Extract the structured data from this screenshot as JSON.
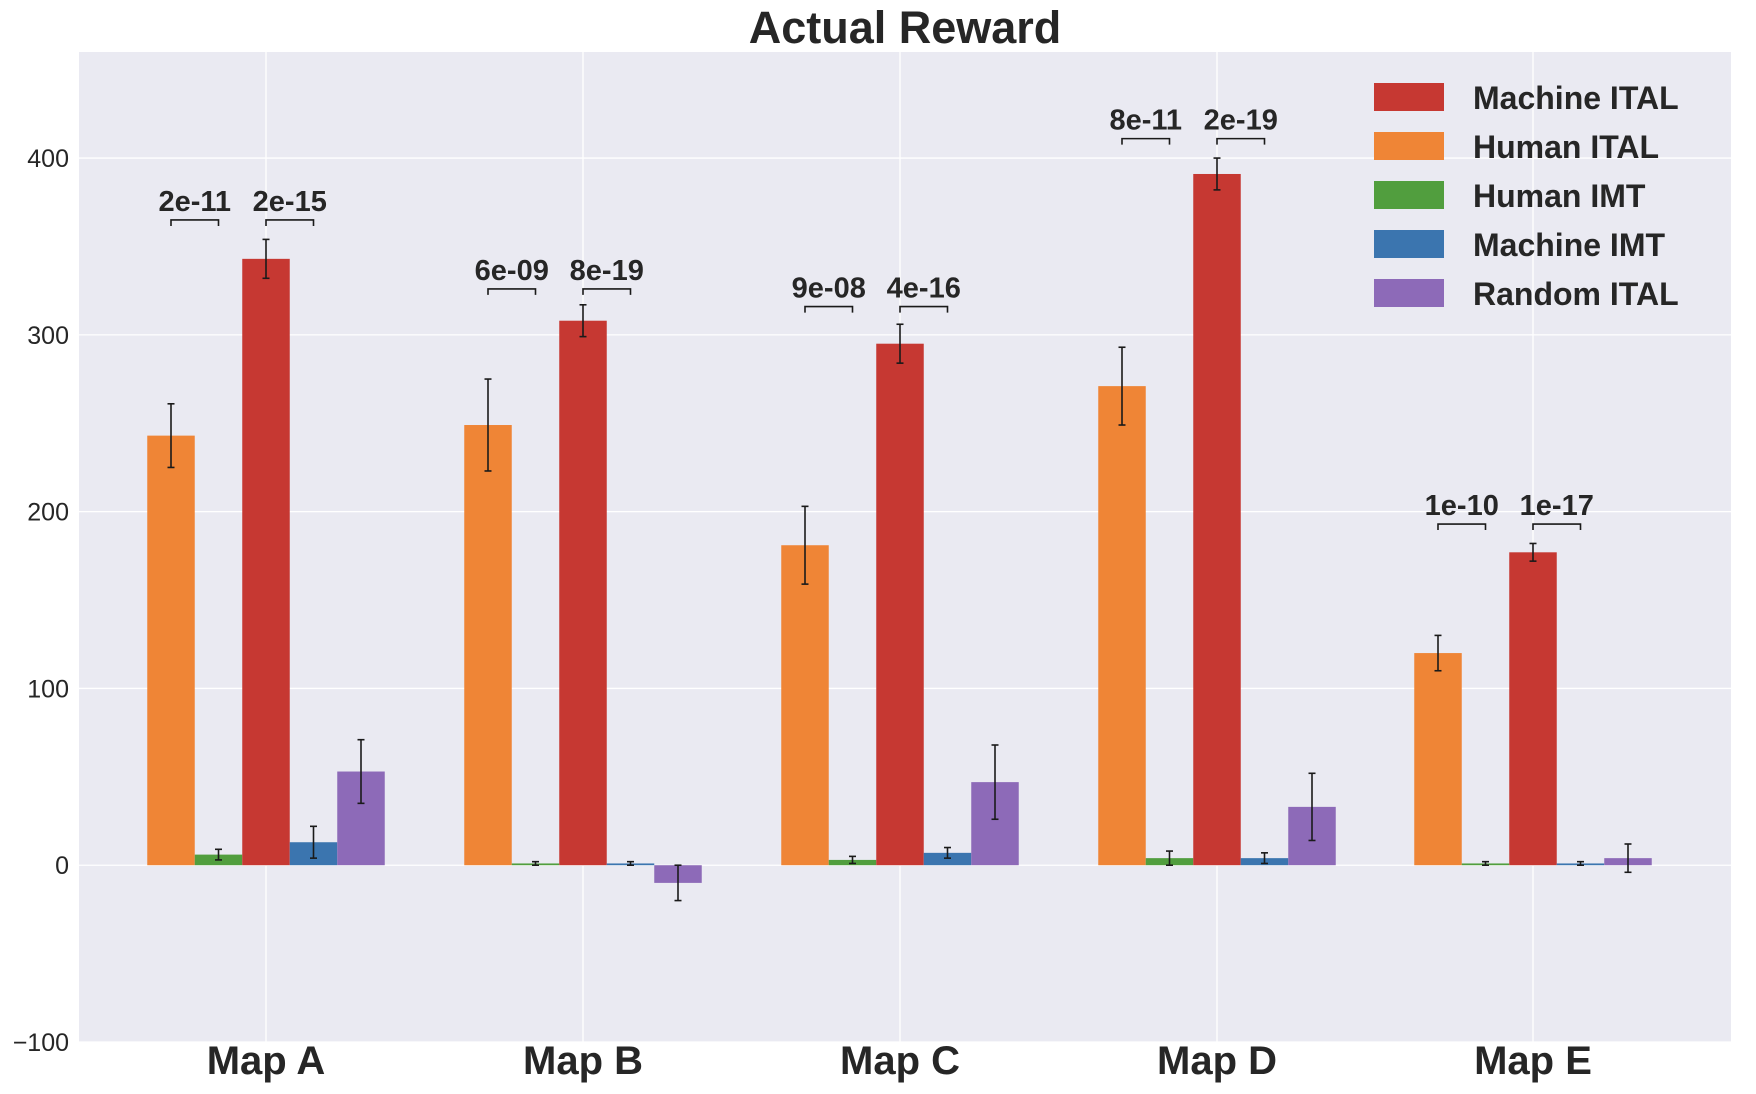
{
  "chart_data": {
    "type": "bar",
    "title": "Actual Reward",
    "xlabel": "",
    "ylabel": "",
    "ylim": [
      -100,
      460
    ],
    "yticks": [
      -100,
      0,
      100,
      200,
      300,
      400
    ],
    "ytick_labels": [
      "−100",
      "0",
      "100",
      "200",
      "300",
      "400"
    ],
    "grid": true,
    "legend_position": "top-right",
    "categories": [
      "Map A",
      "Map B",
      "Map C",
      "Map D",
      "Map E"
    ],
    "bar_order": [
      "Human ITAL",
      "Human IMT",
      "Machine ITAL",
      "Machine IMT",
      "Random ITAL"
    ],
    "series": [
      {
        "name": "Machine ITAL",
        "color": "#c63832",
        "values": [
          343,
          308,
          295,
          391,
          177
        ],
        "errors": [
          11,
          9,
          11,
          9,
          5
        ]
      },
      {
        "name": "Human ITAL",
        "color": "#ef8536",
        "values": [
          243,
          249,
          181,
          271,
          120
        ],
        "errors": [
          18,
          26,
          22,
          22,
          10
        ]
      },
      {
        "name": "Human IMT",
        "color": "#519e3e",
        "values": [
          6,
          1,
          3,
          4,
          1
        ],
        "errors": [
          3,
          1,
          2,
          4,
          1
        ]
      },
      {
        "name": "Machine IMT",
        "color": "#3b75af",
        "values": [
          13,
          1,
          7,
          4,
          1
        ],
        "errors": [
          9,
          1,
          3,
          3,
          1
        ]
      },
      {
        "name": "Random ITAL",
        "color": "#8d6ab8",
        "values": [
          53,
          -10,
          47,
          33,
          4
        ],
        "errors": [
          18,
          10,
          21,
          19,
          8
        ]
      }
    ],
    "annotations": [
      {
        "category": "Map A",
        "from": "Human ITAL",
        "to": "Human IMT",
        "y": 365,
        "text": "2e-11"
      },
      {
        "category": "Map A",
        "from": "Machine ITAL",
        "to": "Machine IMT",
        "y": 365,
        "text": "2e-15"
      },
      {
        "category": "Map B",
        "from": "Human ITAL",
        "to": "Human IMT",
        "y": 326,
        "text": "6e-09"
      },
      {
        "category": "Map B",
        "from": "Machine ITAL",
        "to": "Machine IMT",
        "y": 326,
        "text": "8e-19"
      },
      {
        "category": "Map C",
        "from": "Human ITAL",
        "to": "Human IMT",
        "y": 316,
        "text": "9e-08"
      },
      {
        "category": "Map C",
        "from": "Machine ITAL",
        "to": "Machine IMT",
        "y": 316,
        "text": "4e-16"
      },
      {
        "category": "Map D",
        "from": "Human ITAL",
        "to": "Human IMT",
        "y": 411,
        "text": "8e-11"
      },
      {
        "category": "Map D",
        "from": "Machine ITAL",
        "to": "Machine IMT",
        "y": 411,
        "text": "2e-19"
      },
      {
        "category": "Map E",
        "from": "Human ITAL",
        "to": "Human IMT",
        "y": 193,
        "text": "1e-10"
      },
      {
        "category": "Map E",
        "from": "Machine ITAL",
        "to": "Machine IMT",
        "y": 193,
        "text": "1e-17"
      }
    ]
  },
  "colors": {
    "plot_background": "#eaeaf2",
    "grid": "#ffffff",
    "text": "#262626",
    "errorbar": "#1a1a1a"
  }
}
